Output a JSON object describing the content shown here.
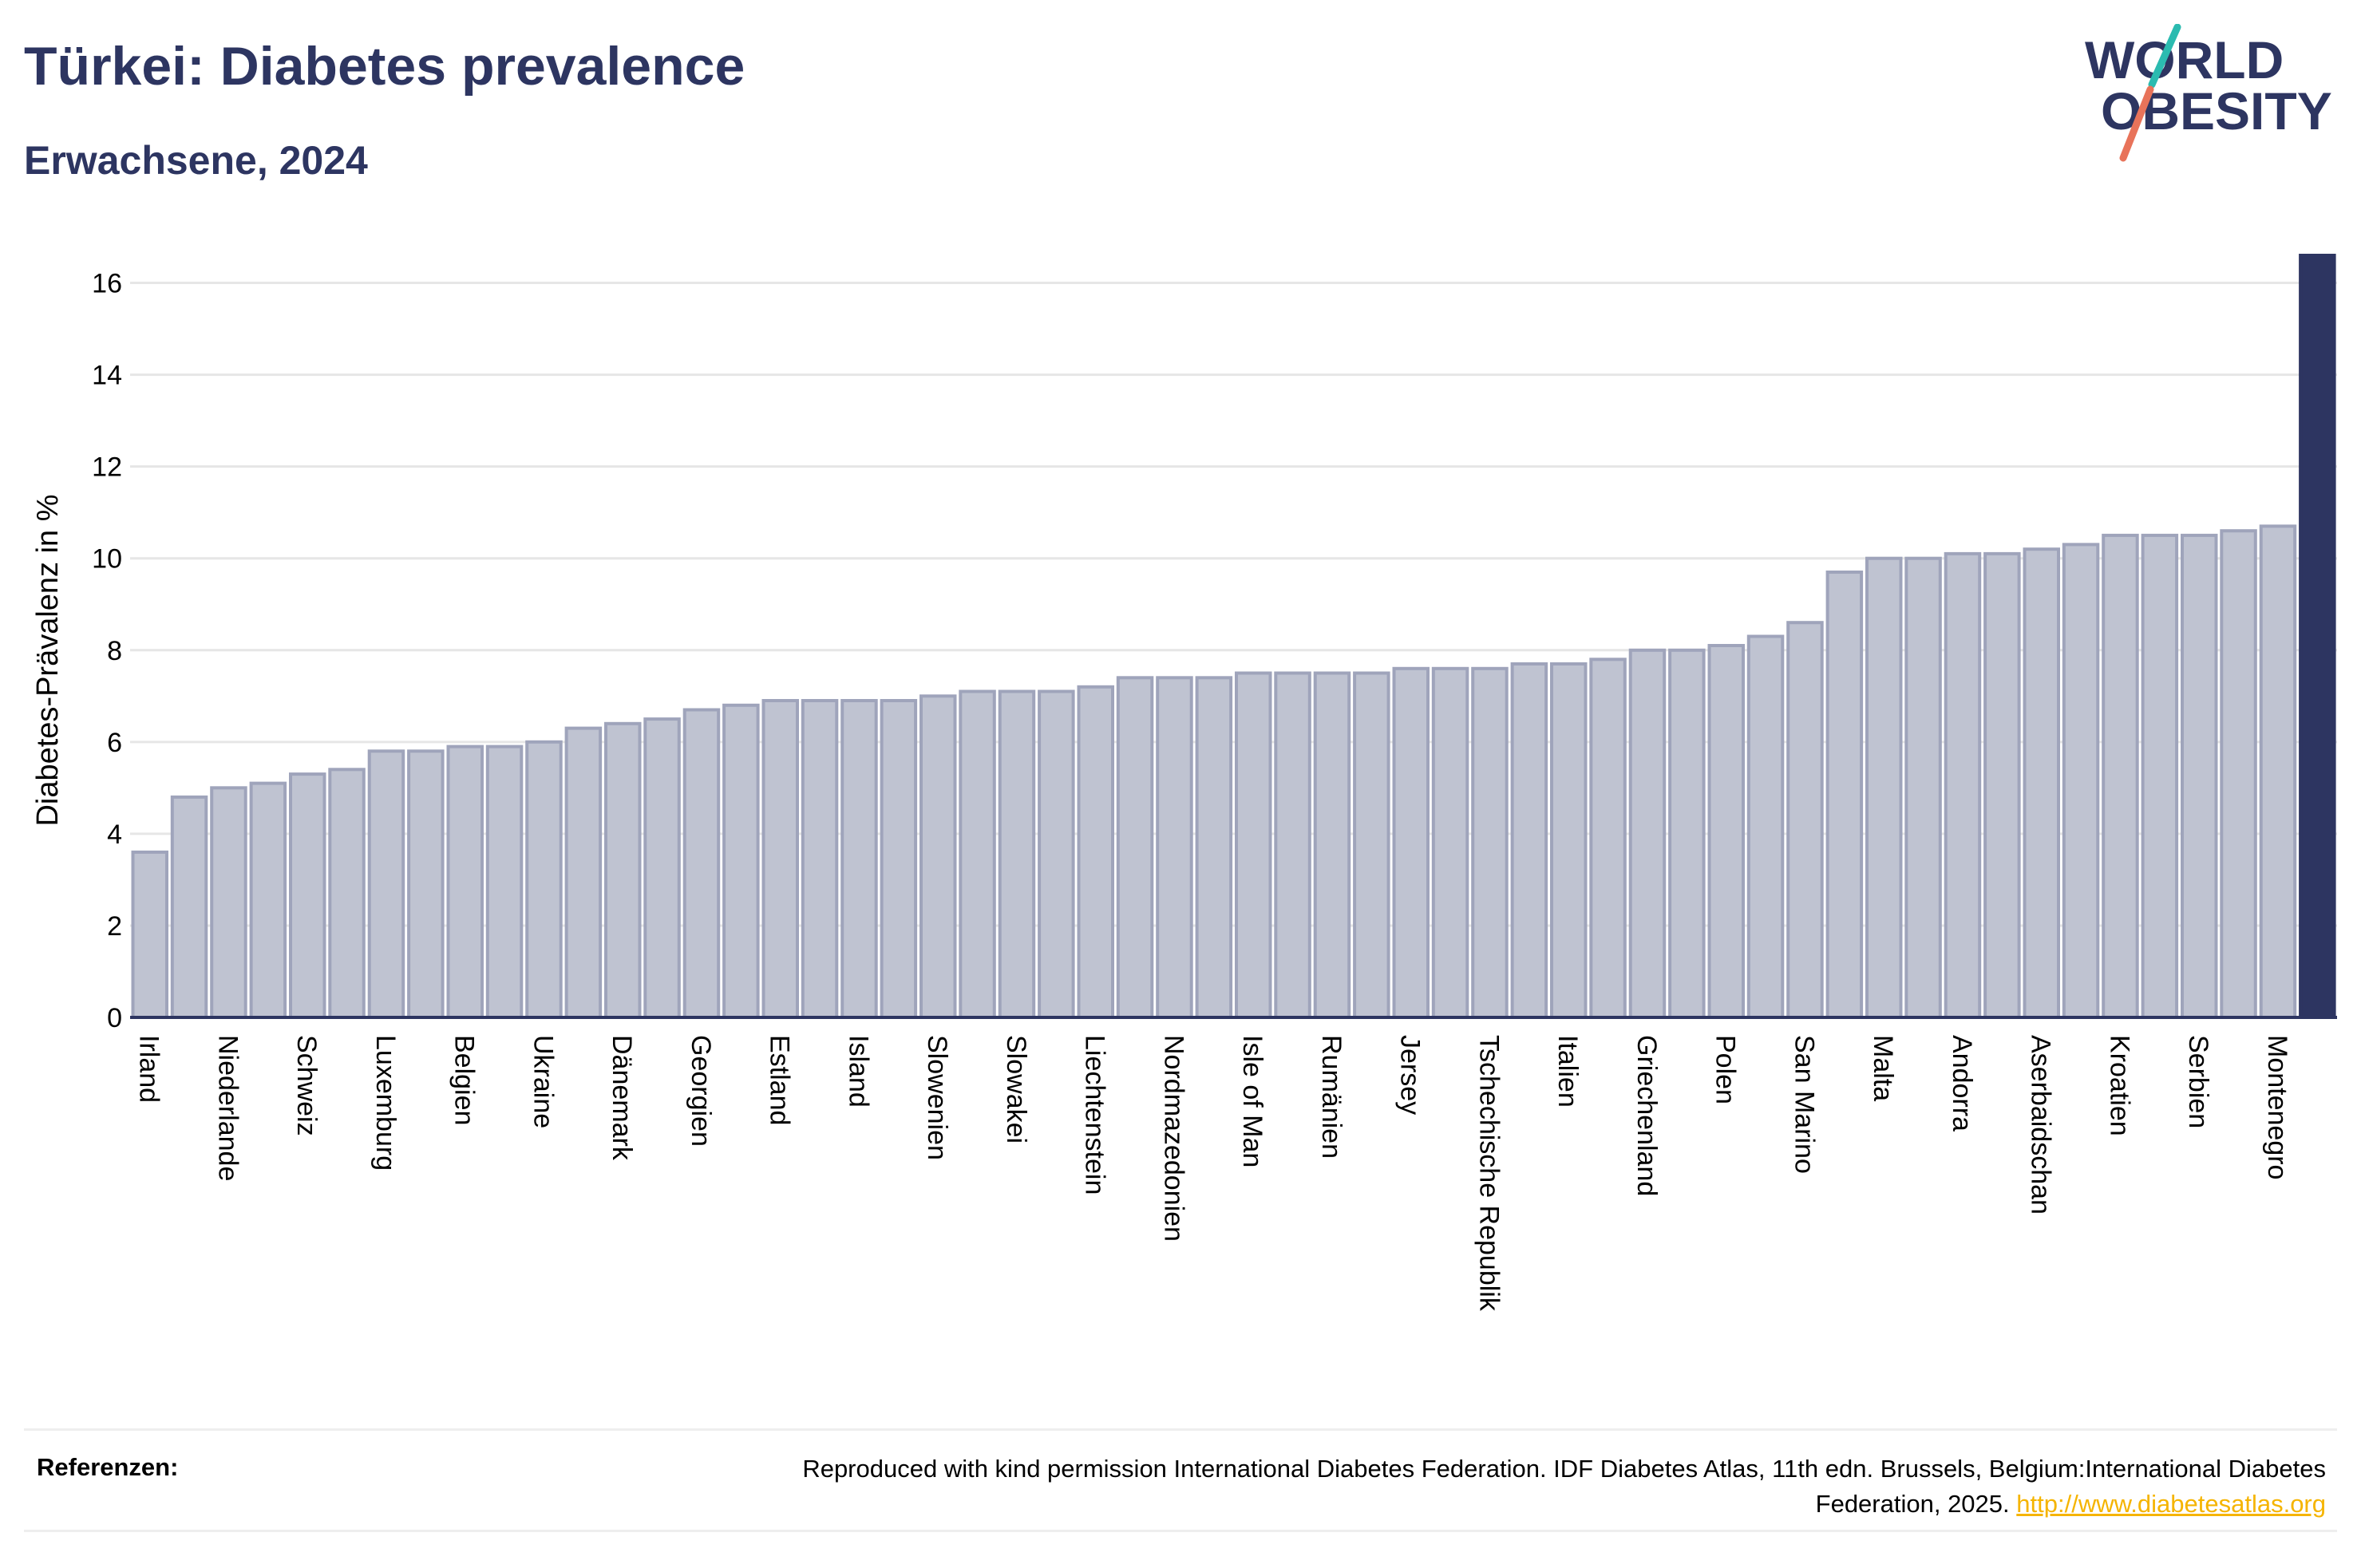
{
  "header": {
    "title": "Türkei: Diabetes prevalence",
    "subtitle": "Erwachsene, 2024"
  },
  "logo": {
    "line1": "WORLD",
    "line2": "OBESITY",
    "colors": {
      "text": "#2d3561",
      "slash_top": "#2bbbb0",
      "slash_bottom": "#e8735a"
    }
  },
  "colors": {
    "bar_fill": "#bfc3d1",
    "bar_stroke": "#9fa4bb",
    "highlight": "#2d3561",
    "grid": "#e6e6e6",
    "axis_text": "#000000"
  },
  "chart_data": {
    "type": "bar",
    "ylabel": "Diabetes-Prävalenz in %",
    "ylim": [
      0,
      16.6
    ],
    "yticks": [
      0,
      2,
      4,
      6,
      8,
      10,
      12,
      14,
      16
    ],
    "grid": true,
    "highlight_index": 55,
    "categories": [
      "Irland",
      "",
      "Niederlande",
      "",
      "Schweiz",
      "",
      "Luxemburg",
      "",
      "Belgien",
      "",
      "Ukraine",
      "",
      "Dänemark",
      "",
      "Georgien",
      "",
      "Estland",
      "",
      "Island",
      "",
      "Slowenien",
      "",
      "Slowakei",
      "",
      "Liechtenstein",
      "",
      "Nordmazedonien",
      "",
      "Isle of Man",
      "",
      "Rumänien",
      "",
      "Jersey",
      "",
      "Tschechische Republik",
      "",
      "Italien",
      "",
      "Griechenland",
      "",
      "Polen",
      "",
      "San Marino",
      "",
      "Malta",
      "",
      "Andorra",
      "",
      "Aserbaidschan",
      "",
      "Kroatien",
      "",
      "Serbien",
      "",
      "Montenegro",
      ""
    ],
    "values": [
      3.6,
      4.8,
      5.0,
      5.1,
      5.3,
      5.4,
      5.8,
      5.8,
      5.9,
      5.9,
      6.0,
      6.3,
      6.4,
      6.5,
      6.7,
      6.8,
      6.9,
      6.9,
      6.9,
      6.9,
      7.0,
      7.1,
      7.1,
      7.1,
      7.2,
      7.4,
      7.4,
      7.4,
      7.5,
      7.5,
      7.5,
      7.5,
      7.6,
      7.6,
      7.6,
      7.7,
      7.7,
      7.8,
      8.0,
      8.0,
      8.1,
      8.3,
      8.6,
      9.7,
      10.0,
      10.0,
      10.1,
      10.1,
      10.2,
      10.3,
      10.5,
      10.5,
      10.5,
      10.6,
      10.7,
      16.6
    ]
  },
  "references": {
    "label": "Referenzen:",
    "text": "Reproduced with kind permission International Diabetes Federation. IDF Diabetes Atlas, 11th edn. Brussels, Belgium:International Diabetes Federation, 2025.",
    "link": "http://www.diabetesatlas.org"
  }
}
